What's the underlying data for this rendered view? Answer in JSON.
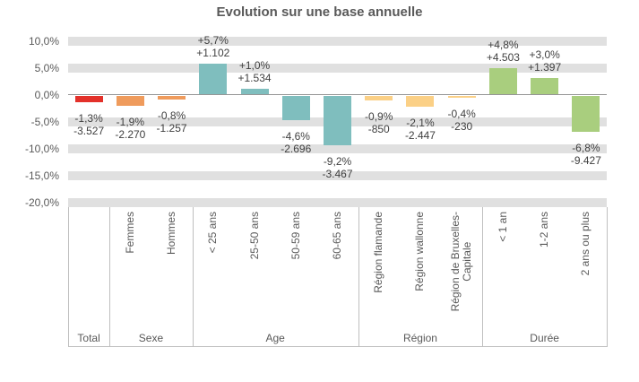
{
  "chart_data": {
    "type": "bar",
    "title": "Evolution sur une base annuelle",
    "xlabel": "",
    "ylabel": "",
    "ylim": [
      -20,
      10
    ],
    "ytick_step_pct": 5,
    "ytick_labels": [
      "10,0%",
      "5,0%",
      "0,0%",
      "-5,0%",
      "-10,0%",
      "-15,0%",
      "-20,0%"
    ],
    "grid": "thick horizontal gray bands at each 5% tick, thin gray line at 0%",
    "legend": "none",
    "value_labels": "each bar labeled with percent change and absolute change",
    "groups": [
      {
        "label": "Total",
        "color": "#e3312a",
        "items": [
          {
            "label": "",
            "pct": -1.3,
            "pct_label": "-1,3%",
            "abs_label": "-3.527"
          }
        ]
      },
      {
        "label": "Sexe",
        "color": "#ef9b5c",
        "items": [
          {
            "label": "Femmes",
            "pct": -1.9,
            "pct_label": "-1,9%",
            "abs_label": "-2.270"
          },
          {
            "label": "Hommes",
            "pct": -0.8,
            "pct_label": "-0,8%",
            "abs_label": "-1.257"
          }
        ]
      },
      {
        "label": "Age",
        "color": "#7fbebe",
        "items": [
          {
            "label": "< 25 ans",
            "pct": 5.7,
            "pct_label": "+5,7%",
            "abs_label": "+1.102"
          },
          {
            "label": "25-50 ans",
            "pct": 1.0,
            "pct_label": "+1,0%",
            "abs_label": "+1.534"
          },
          {
            "label": "50-59 ans",
            "pct": -4.6,
            "pct_label": "-4,6%",
            "abs_label": "-2.696"
          },
          {
            "label": "60-65 ans",
            "pct": -9.2,
            "pct_label": "-9,2%",
            "abs_label": "-3.467"
          }
        ]
      },
      {
        "label": "Région",
        "color": "#fbd086",
        "items": [
          {
            "label": "Région flamande",
            "pct": -0.9,
            "pct_label": "-0,9%",
            "abs_label": "-850"
          },
          {
            "label": "Région wallonne",
            "pct": -2.1,
            "pct_label": "-2,1%",
            "abs_label": "-2.447"
          },
          {
            "label": "Région de Bruxelles-\nCapitale",
            "pct": -0.4,
            "pct_label": "-0,4%",
            "abs_label": "-230"
          }
        ]
      },
      {
        "label": "Durée",
        "color": "#a9ce7e",
        "items": [
          {
            "label": "< 1 an",
            "pct": 4.8,
            "pct_label": "+4,8%",
            "abs_label": "+4.503"
          },
          {
            "label": "1-2 ans",
            "pct": 3.0,
            "pct_label": "+3,0%",
            "abs_label": "+1.397"
          },
          {
            "label": "2 ans ou plus",
            "pct": -6.8,
            "pct_label": "-6,8%",
            "abs_label": "-9.427"
          }
        ]
      }
    ],
    "colors": {
      "grid_band": "#e0e0e0",
      "zero_line": "#969696",
      "axis_line": "#bfbfbf",
      "title_text": "#595959",
      "axis_text": "#595959",
      "value_label_text": "#3f3f3f",
      "background": "#ffffff"
    }
  }
}
